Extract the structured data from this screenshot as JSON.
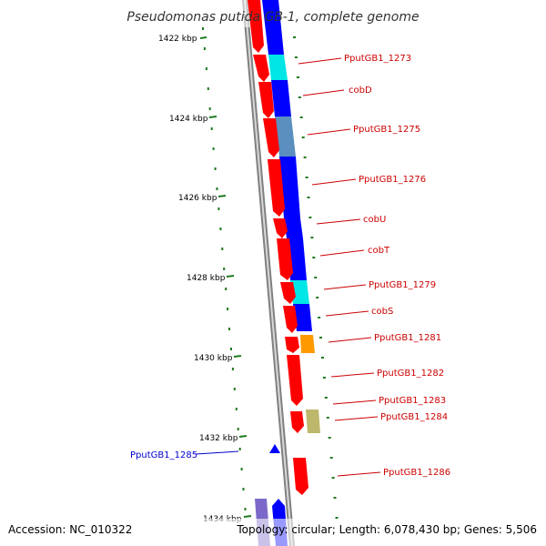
{
  "title": "Pseudomonas putida GB-1, complete genome",
  "accession": "Accession: NC_010322",
  "topology": "Topology: circular; Length: 6,078,430 bp; Genes: 5,506",
  "colors": {
    "backbone": "#808080",
    "tick": "#1f7a1f",
    "forward_cds": "#ff0000",
    "reverse_cds": "#0000ff",
    "cyan_feature": "#00e5e5",
    "steelblue_feature": "#5b8fbf",
    "orange_feature": "#ff9900",
    "khaki_feature": "#bdb76b",
    "purple_feature": "#7b68c8",
    "label_red": "#cc0000",
    "label_blue": "#0000cc"
  },
  "ticks": [
    {
      "label": "1422 kbp"
    },
    {
      "label": "1424 kbp"
    },
    {
      "label": "1426 kbp"
    },
    {
      "label": "1428 kbp"
    },
    {
      "label": "1430 kbp"
    },
    {
      "label": "1432 kbp"
    },
    {
      "label": "1434 kbp"
    }
  ],
  "gene_labels": [
    {
      "text": "PputGB1_1273",
      "color": "label_red"
    },
    {
      "text": "cobD",
      "color": "label_red"
    },
    {
      "text": "PputGB1_1275",
      "color": "label_red"
    },
    {
      "text": "PputGB1_1276",
      "color": "label_red"
    },
    {
      "text": "cobU",
      "color": "label_red"
    },
    {
      "text": "cobT",
      "color": "label_red"
    },
    {
      "text": "PputGB1_1279",
      "color": "label_red"
    },
    {
      "text": "cobS",
      "color": "label_red"
    },
    {
      "text": "PputGB1_1281",
      "color": "label_red"
    },
    {
      "text": "PputGB1_1282",
      "color": "label_red"
    },
    {
      "text": "PputGB1_1283",
      "color": "label_red"
    },
    {
      "text": "PputGB1_1284",
      "color": "label_red"
    },
    {
      "text": "PputGB1_1285",
      "color": "label_blue"
    },
    {
      "text": "PputGB1_1286",
      "color": "label_red"
    }
  ]
}
